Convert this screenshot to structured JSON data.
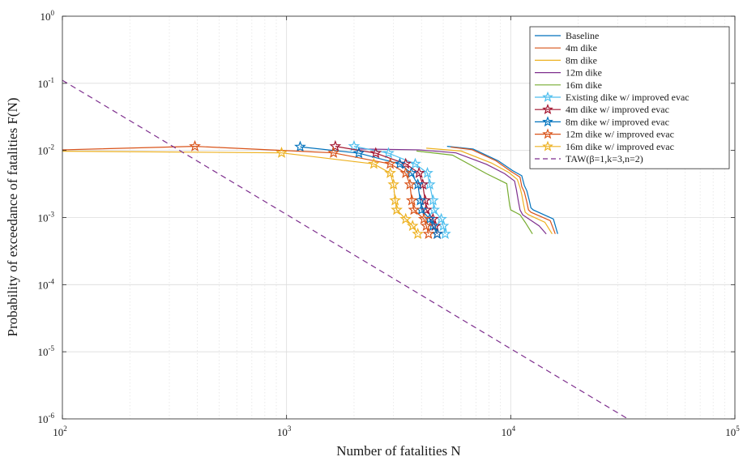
{
  "chart_data": {
    "type": "line",
    "xlabel": "Number of fatalities N",
    "ylabel": "Probability of exceedance of fatalities F(N)",
    "x_scale": "log",
    "y_scale": "log",
    "xlim": [
      100,
      100000
    ],
    "ylim": [
      1e-06,
      1
    ],
    "grid": true,
    "legend_position": "top-right",
    "x_ticks": [
      {
        "base": "10",
        "exp": "2",
        "value": 100
      },
      {
        "base": "10",
        "exp": "3",
        "value": 1000
      },
      {
        "base": "10",
        "exp": "4",
        "value": 10000
      },
      {
        "base": "10",
        "exp": "5",
        "value": 100000
      }
    ],
    "y_ticks": [
      {
        "base": "10",
        "exp": "0",
        "value": 1
      },
      {
        "base": "10",
        "exp": "-1",
        "value": 0.1
      },
      {
        "base": "10",
        "exp": "-2",
        "value": 0.01
      },
      {
        "base": "10",
        "exp": "-3",
        "value": 0.001
      },
      {
        "base": "10",
        "exp": "-4",
        "value": 0.0001
      },
      {
        "base": "10",
        "exp": "-5",
        "value": 1e-05
      },
      {
        "base": "10",
        "exp": "-6",
        "value": 1e-06
      }
    ],
    "series": [
      {
        "name": "Baseline",
        "color": "#0072BD",
        "marker": "none",
        "dash": false,
        "points": [
          [
            5200,
            0.0115
          ],
          [
            6800,
            0.0105
          ],
          [
            8800,
            0.007
          ],
          [
            10200,
            0.005
          ],
          [
            11200,
            0.0042
          ],
          [
            11500,
            0.003
          ],
          [
            11800,
            0.0025
          ],
          [
            12100,
            0.0018
          ],
          [
            12300,
            0.0014
          ],
          [
            12600,
            0.0013
          ],
          [
            15500,
            0.00095
          ],
          [
            16200,
            0.00057
          ]
        ]
      },
      {
        "name": "4m dike",
        "color": "#D95319",
        "marker": "none",
        "dash": false,
        "points": [
          [
            5400,
            0.0112
          ],
          [
            6700,
            0.0103
          ],
          [
            8600,
            0.007
          ],
          [
            10000,
            0.0049
          ],
          [
            11000,
            0.004
          ],
          [
            11200,
            0.0029
          ],
          [
            11500,
            0.0024
          ],
          [
            11800,
            0.0017
          ],
          [
            12000,
            0.0013
          ],
          [
            12300,
            0.0012
          ],
          [
            15000,
            0.0009
          ],
          [
            15800,
            0.00057
          ]
        ]
      },
      {
        "name": "8m dike",
        "color": "#EDB120",
        "marker": "none",
        "dash": false,
        "points": [
          [
            4200,
            0.0108
          ],
          [
            6000,
            0.0098
          ],
          [
            8200,
            0.0065
          ],
          [
            9800,
            0.0047
          ],
          [
            10700,
            0.0037
          ],
          [
            11000,
            0.0028
          ],
          [
            11200,
            0.0022
          ],
          [
            11400,
            0.0016
          ],
          [
            11600,
            0.0012
          ],
          [
            12000,
            0.0011
          ],
          [
            14200,
            0.00085
          ],
          [
            15300,
            0.00057
          ]
        ]
      },
      {
        "name": "12m dike",
        "color": "#7E2F8E",
        "marker": "none",
        "dash": false,
        "points": [
          [
            2100,
            0.0105
          ],
          [
            3900,
            0.0102
          ],
          [
            5700,
            0.0092
          ],
          [
            7800,
            0.0062
          ],
          [
            9400,
            0.0045
          ],
          [
            10400,
            0.0035
          ],
          [
            10600,
            0.0026
          ],
          [
            10800,
            0.0018
          ],
          [
            11000,
            0.0013
          ],
          [
            11300,
            0.0011
          ],
          [
            13400,
            0.00075
          ],
          [
            14400,
            0.00057
          ]
        ]
      },
      {
        "name": "16m dike",
        "color": "#77AC30",
        "marker": "none",
        "dash": false,
        "points": [
          [
            3800,
            0.0098
          ],
          [
            5500,
            0.0085
          ],
          [
            7800,
            0.0045
          ],
          [
            9600,
            0.0032
          ],
          [
            9900,
            0.0015
          ],
          [
            10000,
            0.0013
          ],
          [
            11000,
            0.0011
          ],
          [
            11600,
            0.00085
          ],
          [
            12500,
            0.00057
          ]
        ]
      },
      {
        "name": "Existing dike w/ improved evac",
        "color": "#4DBEEE",
        "marker": "star",
        "dash": false,
        "points": [
          [
            2000,
            0.0115
          ],
          [
            2850,
            0.0091
          ],
          [
            3750,
            0.0063
          ],
          [
            4250,
            0.0046
          ],
          [
            4350,
            0.0031
          ],
          [
            4500,
            0.0018
          ],
          [
            4550,
            0.0013
          ],
          [
            4900,
            0.00095
          ],
          [
            5000,
            0.00075
          ],
          [
            5100,
            0.00057
          ]
        ]
      },
      {
        "name": "4m dike w/ improved evac",
        "color": "#A2142F",
        "marker": "star",
        "dash": false,
        "points": [
          [
            1650,
            0.0115
          ],
          [
            2500,
            0.0091
          ],
          [
            3400,
            0.0063
          ],
          [
            3900,
            0.0046
          ],
          [
            4050,
            0.0031
          ],
          [
            4150,
            0.0018
          ],
          [
            4200,
            0.0013
          ],
          [
            4500,
            0.00095
          ],
          [
            4600,
            0.00075
          ],
          [
            4700,
            0.00057
          ]
        ]
      },
      {
        "name": "8m dike w/ improved evac",
        "color": "#0072BD",
        "marker": "star",
        "dash": false,
        "points": [
          [
            1150,
            0.0113
          ],
          [
            2100,
            0.0091
          ],
          [
            3200,
            0.0063
          ],
          [
            3600,
            0.0046
          ],
          [
            3850,
            0.0031
          ],
          [
            3950,
            0.0018
          ],
          [
            4000,
            0.0013
          ],
          [
            4350,
            0.00095
          ],
          [
            4500,
            0.00075
          ],
          [
            4700,
            0.00057
          ]
        ]
      },
      {
        "name": "12m dike w/ improved evac",
        "color": "#D95319",
        "marker": "star",
        "dash": false,
        "points": [
          [
            80,
            0.01
          ],
          [
            390,
            0.0115
          ],
          [
            1620,
            0.0092
          ],
          [
            2900,
            0.0063
          ],
          [
            3400,
            0.0046
          ],
          [
            3550,
            0.0031
          ],
          [
            3620,
            0.0018
          ],
          [
            3700,
            0.0013
          ],
          [
            4100,
            0.00095
          ],
          [
            4200,
            0.00075
          ],
          [
            4300,
            0.00057
          ]
        ]
      },
      {
        "name": "16m dike w/ improved evac",
        "color": "#EDB120",
        "marker": "star",
        "dash": false,
        "points": [
          [
            80,
            0.0098
          ],
          [
            950,
            0.0092
          ],
          [
            2450,
            0.0063
          ],
          [
            2900,
            0.0046
          ],
          [
            3000,
            0.0031
          ],
          [
            3050,
            0.0018
          ],
          [
            3100,
            0.0013
          ],
          [
            3400,
            0.00095
          ],
          [
            3650,
            0.00075
          ],
          [
            3850,
            0.00057
          ]
        ]
      },
      {
        "name": "TAW(β=1,k=3,n=2)",
        "color": "#7E2F8E",
        "marker": "none",
        "dash": true,
        "points": [
          [
            100,
            0.111
          ],
          [
            33300,
            1e-06
          ]
        ]
      }
    ]
  }
}
